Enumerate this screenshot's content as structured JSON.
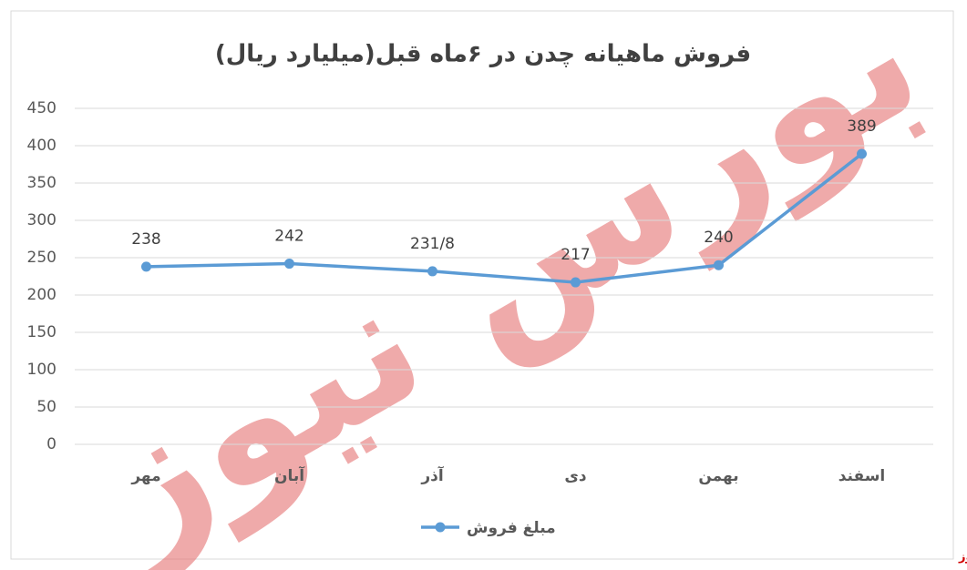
{
  "chart_data": {
    "type": "line",
    "title": "فروش ماهیانه چدن در ۶ماه قبل(میلیارد ریال)",
    "categories": [
      "مهر",
      "آبان",
      "آذر",
      "دی",
      "بهمن",
      "اسفند"
    ],
    "series": [
      {
        "name": "مبلغ فروش",
        "color": "#5b9bd5",
        "values": [
          238,
          242,
          231.8,
          217,
          240,
          389
        ],
        "value_labels": [
          "238",
          "242",
          "231/8",
          "217",
          "240",
          "389"
        ]
      }
    ],
    "ylim": [
      0,
      450
    ],
    "yticks": [
      0,
      50,
      100,
      150,
      200,
      250,
      300,
      350,
      400,
      450
    ],
    "grid": true,
    "legend": "bottom",
    "source": "بورس نیوز"
  }
}
